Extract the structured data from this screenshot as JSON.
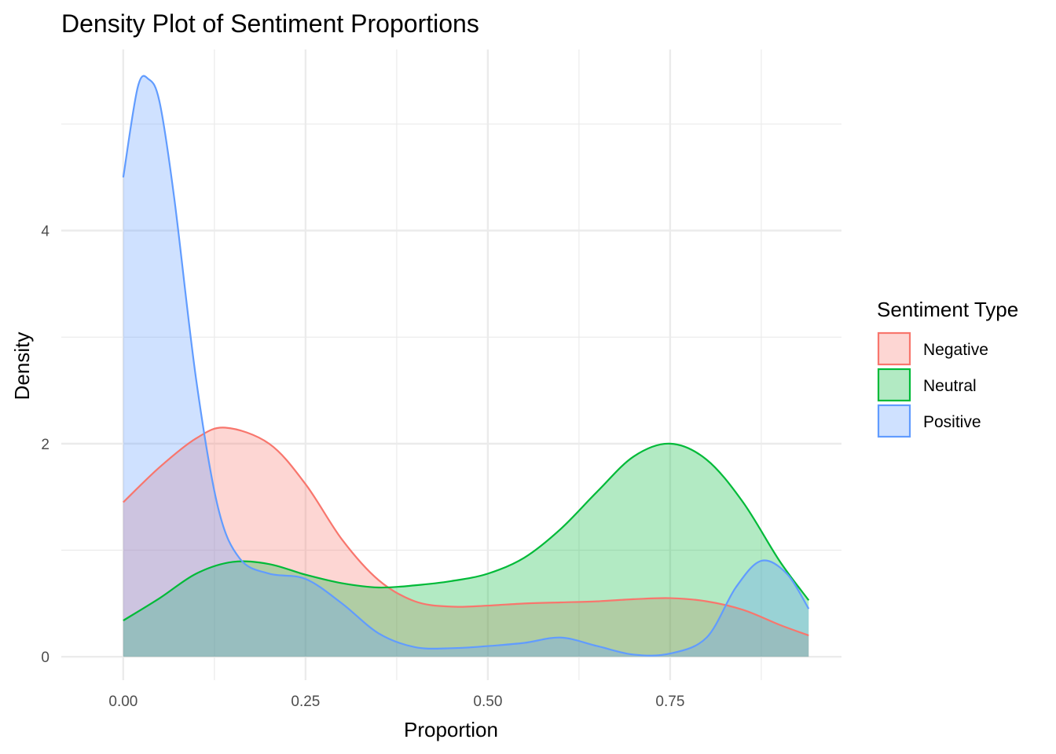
{
  "chart_data": {
    "type": "area",
    "title": "Density Plot of Sentiment Proportions",
    "xlabel": "Proportion",
    "ylabel": "Density",
    "xlim": [
      -0.085,
      0.985
    ],
    "ylim": [
      -0.22,
      5.7
    ],
    "x_ticks": [
      0.0,
      0.25,
      0.5,
      0.75
    ],
    "x_tick_labels": [
      "0.00",
      "0.25",
      "0.50",
      "0.75"
    ],
    "y_ticks": [
      0,
      2,
      4
    ],
    "y_tick_labels": [
      "0",
      "2",
      "4"
    ],
    "x_minor_ticks": [
      0.125,
      0.375,
      0.625,
      0.875
    ],
    "y_minor_ticks": [
      1,
      3,
      5
    ],
    "grid": true,
    "legend": {
      "title": "Sentiment Type",
      "placement": "right"
    },
    "series": [
      {
        "name": "Negative",
        "color": "#F8766D",
        "fill": "#F8766D",
        "x": [
          0.0,
          0.05,
          0.1,
          0.14,
          0.2,
          0.25,
          0.3,
          0.35,
          0.4,
          0.45,
          0.5,
          0.55,
          0.6,
          0.65,
          0.7,
          0.75,
          0.8,
          0.85,
          0.9,
          0.94
        ],
        "y": [
          1.45,
          1.78,
          2.05,
          2.15,
          2.0,
          1.62,
          1.1,
          0.72,
          0.52,
          0.47,
          0.48,
          0.5,
          0.51,
          0.52,
          0.54,
          0.55,
          0.52,
          0.44,
          0.3,
          0.2
        ]
      },
      {
        "name": "Neutral",
        "color": "#00BA38",
        "fill": "#00BA38",
        "x": [
          0.0,
          0.05,
          0.1,
          0.15,
          0.2,
          0.25,
          0.3,
          0.35,
          0.4,
          0.45,
          0.5,
          0.55,
          0.6,
          0.65,
          0.7,
          0.75,
          0.8,
          0.85,
          0.9,
          0.94
        ],
        "y": [
          0.34,
          0.55,
          0.78,
          0.89,
          0.87,
          0.77,
          0.69,
          0.65,
          0.67,
          0.71,
          0.78,
          0.93,
          1.2,
          1.55,
          1.88,
          2.0,
          1.85,
          1.45,
          0.9,
          0.53
        ]
      },
      {
        "name": "Positive",
        "color": "#619CFF",
        "fill": "#619CFF",
        "x": [
          0.0,
          0.02,
          0.035,
          0.05,
          0.07,
          0.1,
          0.13,
          0.16,
          0.2,
          0.25,
          0.3,
          0.35,
          0.4,
          0.45,
          0.5,
          0.55,
          0.6,
          0.65,
          0.7,
          0.75,
          0.8,
          0.84,
          0.875,
          0.91,
          0.94
        ],
        "y": [
          4.5,
          5.35,
          5.42,
          5.2,
          4.3,
          2.6,
          1.4,
          0.92,
          0.78,
          0.73,
          0.5,
          0.22,
          0.09,
          0.08,
          0.1,
          0.13,
          0.18,
          0.1,
          0.02,
          0.03,
          0.18,
          0.65,
          0.9,
          0.78,
          0.45
        ]
      }
    ]
  }
}
